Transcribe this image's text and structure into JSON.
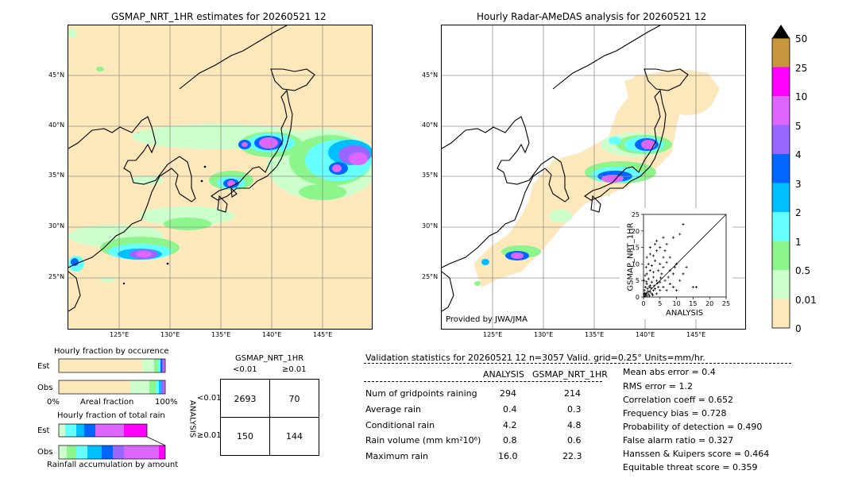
{
  "left_map": {
    "title": "GSMAP_NRT_1HR estimates for 20260521 12",
    "lat_labels": [
      "45°N",
      "40°N",
      "35°N",
      "30°N",
      "25°N"
    ],
    "lon_labels": [
      "125°E",
      "130°E",
      "135°E",
      "140°E",
      "145°E"
    ]
  },
  "right_map": {
    "title": "Hourly Radar-AMeDAS analysis for 20260521 12",
    "lat_labels": [
      "45°N",
      "40°N",
      "35°N",
      "30°N",
      "25°N"
    ],
    "lon_labels": [
      "125°E",
      "130°E",
      "135°E",
      "140°E",
      "145°E"
    ],
    "credit": "Provided by JWA/JMA"
  },
  "colorbar": {
    "labels": [
      "50",
      "25",
      "10",
      "5",
      "4",
      "3",
      "2",
      "1",
      "0.5",
      "0.01",
      "0"
    ],
    "colors": [
      "#c8963c",
      "#ff00ff",
      "#dd66ff",
      "#9966ff",
      "#0066ff",
      "#00bfff",
      "#66ffff",
      "#8cf58c",
      "#ccffcc",
      "#fde8bc"
    ]
  },
  "fraction_occurrence": {
    "title": "Hourly fraction by occurence",
    "rows": [
      "Est",
      "Obs"
    ],
    "axis_left": "0%",
    "axis_mid": "Areal fraction",
    "axis_right": "100%"
  },
  "fraction_total": {
    "title": "Hourly fraction of total rain",
    "rows": [
      "Est",
      "Obs"
    ],
    "axis_label": "Rainfall accumulation by amount"
  },
  "contingency": {
    "col_title": "GSMAP_NRT_1HR",
    "col_labels": [
      "<0.01",
      "≥0.01"
    ],
    "row_title": "ANALYSIS",
    "row_labels": [
      "<0.01",
      "≥0.01"
    ],
    "cells": [
      "2693",
      "70",
      "150",
      "144"
    ]
  },
  "validation": {
    "header": "Validation statistics for 20260521 12  n=3057 Valid. grid=0.25° Units=mm/hr.",
    "col_analysis": "ANALYSIS",
    "col_gsmap": "GSMAP_NRT_1HR",
    "rows": [
      {
        "label": "Num of gridpoints raining",
        "a": "294",
        "g": "214"
      },
      {
        "label": "Average rain",
        "a": "0.4",
        "g": "0.3"
      },
      {
        "label": "Conditional rain",
        "a": "4.2",
        "g": "4.8"
      },
      {
        "label": "Rain volume (mm km²10⁶)",
        "a": "0.8",
        "g": "0.6"
      },
      {
        "label": "Maximum rain",
        "a": "16.0",
        "g": "22.3"
      }
    ],
    "scores": [
      "Mean abs error =    0.4",
      "RMS error =    1.2",
      "Correlation coeff =  0.652",
      "Frequency bias =  0.728",
      "Probability of detection =  0.490",
      "False alarm ratio =  0.327",
      "Hanssen & Kuipers score =  0.464",
      "Equitable threat score =  0.359"
    ]
  },
  "chart_data": {
    "type": "scatter",
    "xlabel": "ANALYSIS",
    "ylabel": "GSMAP_NRT_1HR",
    "xlim": [
      0,
      25
    ],
    "ylim": [
      0,
      25
    ],
    "ticks": [
      "0",
      "5",
      "10",
      "15",
      "20",
      "25"
    ],
    "points": [
      [
        0.5,
        0.5
      ],
      [
        1,
        0.3
      ],
      [
        0.8,
        1.2
      ],
      [
        1.5,
        0.8
      ],
      [
        2,
        1.5
      ],
      [
        0.3,
        2
      ],
      [
        1.2,
        2.5
      ],
      [
        2.5,
        1
      ],
      [
        3,
        2
      ],
      [
        0.6,
        3
      ],
      [
        1,
        4
      ],
      [
        2,
        3.5
      ],
      [
        3.5,
        2.5
      ],
      [
        4,
        1
      ],
      [
        0.2,
        5
      ],
      [
        1.5,
        5.5
      ],
      [
        2.5,
        4.5
      ],
      [
        3,
        6
      ],
      [
        4.5,
        3
      ],
      [
        5,
        2
      ],
      [
        0.5,
        6.5
      ],
      [
        1,
        7
      ],
      [
        2,
        8
      ],
      [
        3,
        7.5
      ],
      [
        4,
        5
      ],
      [
        5,
        4.5
      ],
      [
        6,
        3
      ],
      [
        6.5,
        5
      ],
      [
        7,
        2
      ],
      [
        0.8,
        9
      ],
      [
        1.5,
        10
      ],
      [
        2.5,
        9.5
      ],
      [
        3.5,
        11
      ],
      [
        4.5,
        8
      ],
      [
        5.5,
        7
      ],
      [
        6,
        9
      ],
      [
        7.5,
        6
      ],
      [
        8,
        4
      ],
      [
        9,
        3
      ],
      [
        10,
        2
      ],
      [
        1,
        12
      ],
      [
        2,
        13
      ],
      [
        3,
        12.5
      ],
      [
        4,
        14
      ],
      [
        5,
        10
      ],
      [
        6,
        12
      ],
      [
        7,
        10.5
      ],
      [
        8,
        8
      ],
      [
        9,
        7
      ],
      [
        11,
        5
      ],
      [
        2,
        15
      ],
      [
        3.5,
        16
      ],
      [
        5,
        15
      ],
      [
        6.5,
        14
      ],
      [
        8,
        12
      ],
      [
        9.5,
        9
      ],
      [
        12,
        7
      ],
      [
        15,
        3
      ],
      [
        4,
        17
      ],
      [
        6,
        18
      ],
      [
        9,
        18
      ],
      [
        11,
        19
      ],
      [
        12,
        22
      ],
      [
        0.3,
        0.2
      ],
      [
        0.7,
        0.9
      ],
      [
        1.3,
        1.7
      ],
      [
        1.8,
        0.4
      ],
      [
        2.2,
        2.8
      ],
      [
        2.8,
        0.6
      ],
      [
        0.4,
        1.1
      ],
      [
        16,
        3
      ],
      [
        13,
        9
      ],
      [
        10,
        10
      ],
      [
        7,
        16
      ],
      [
        0.9,
        4.6
      ],
      [
        1.7,
        3.1
      ],
      [
        3.2,
        3.4
      ],
      [
        4.2,
        4.2
      ],
      [
        5.2,
        5.8
      ],
      [
        0.2,
        0.9
      ]
    ]
  }
}
